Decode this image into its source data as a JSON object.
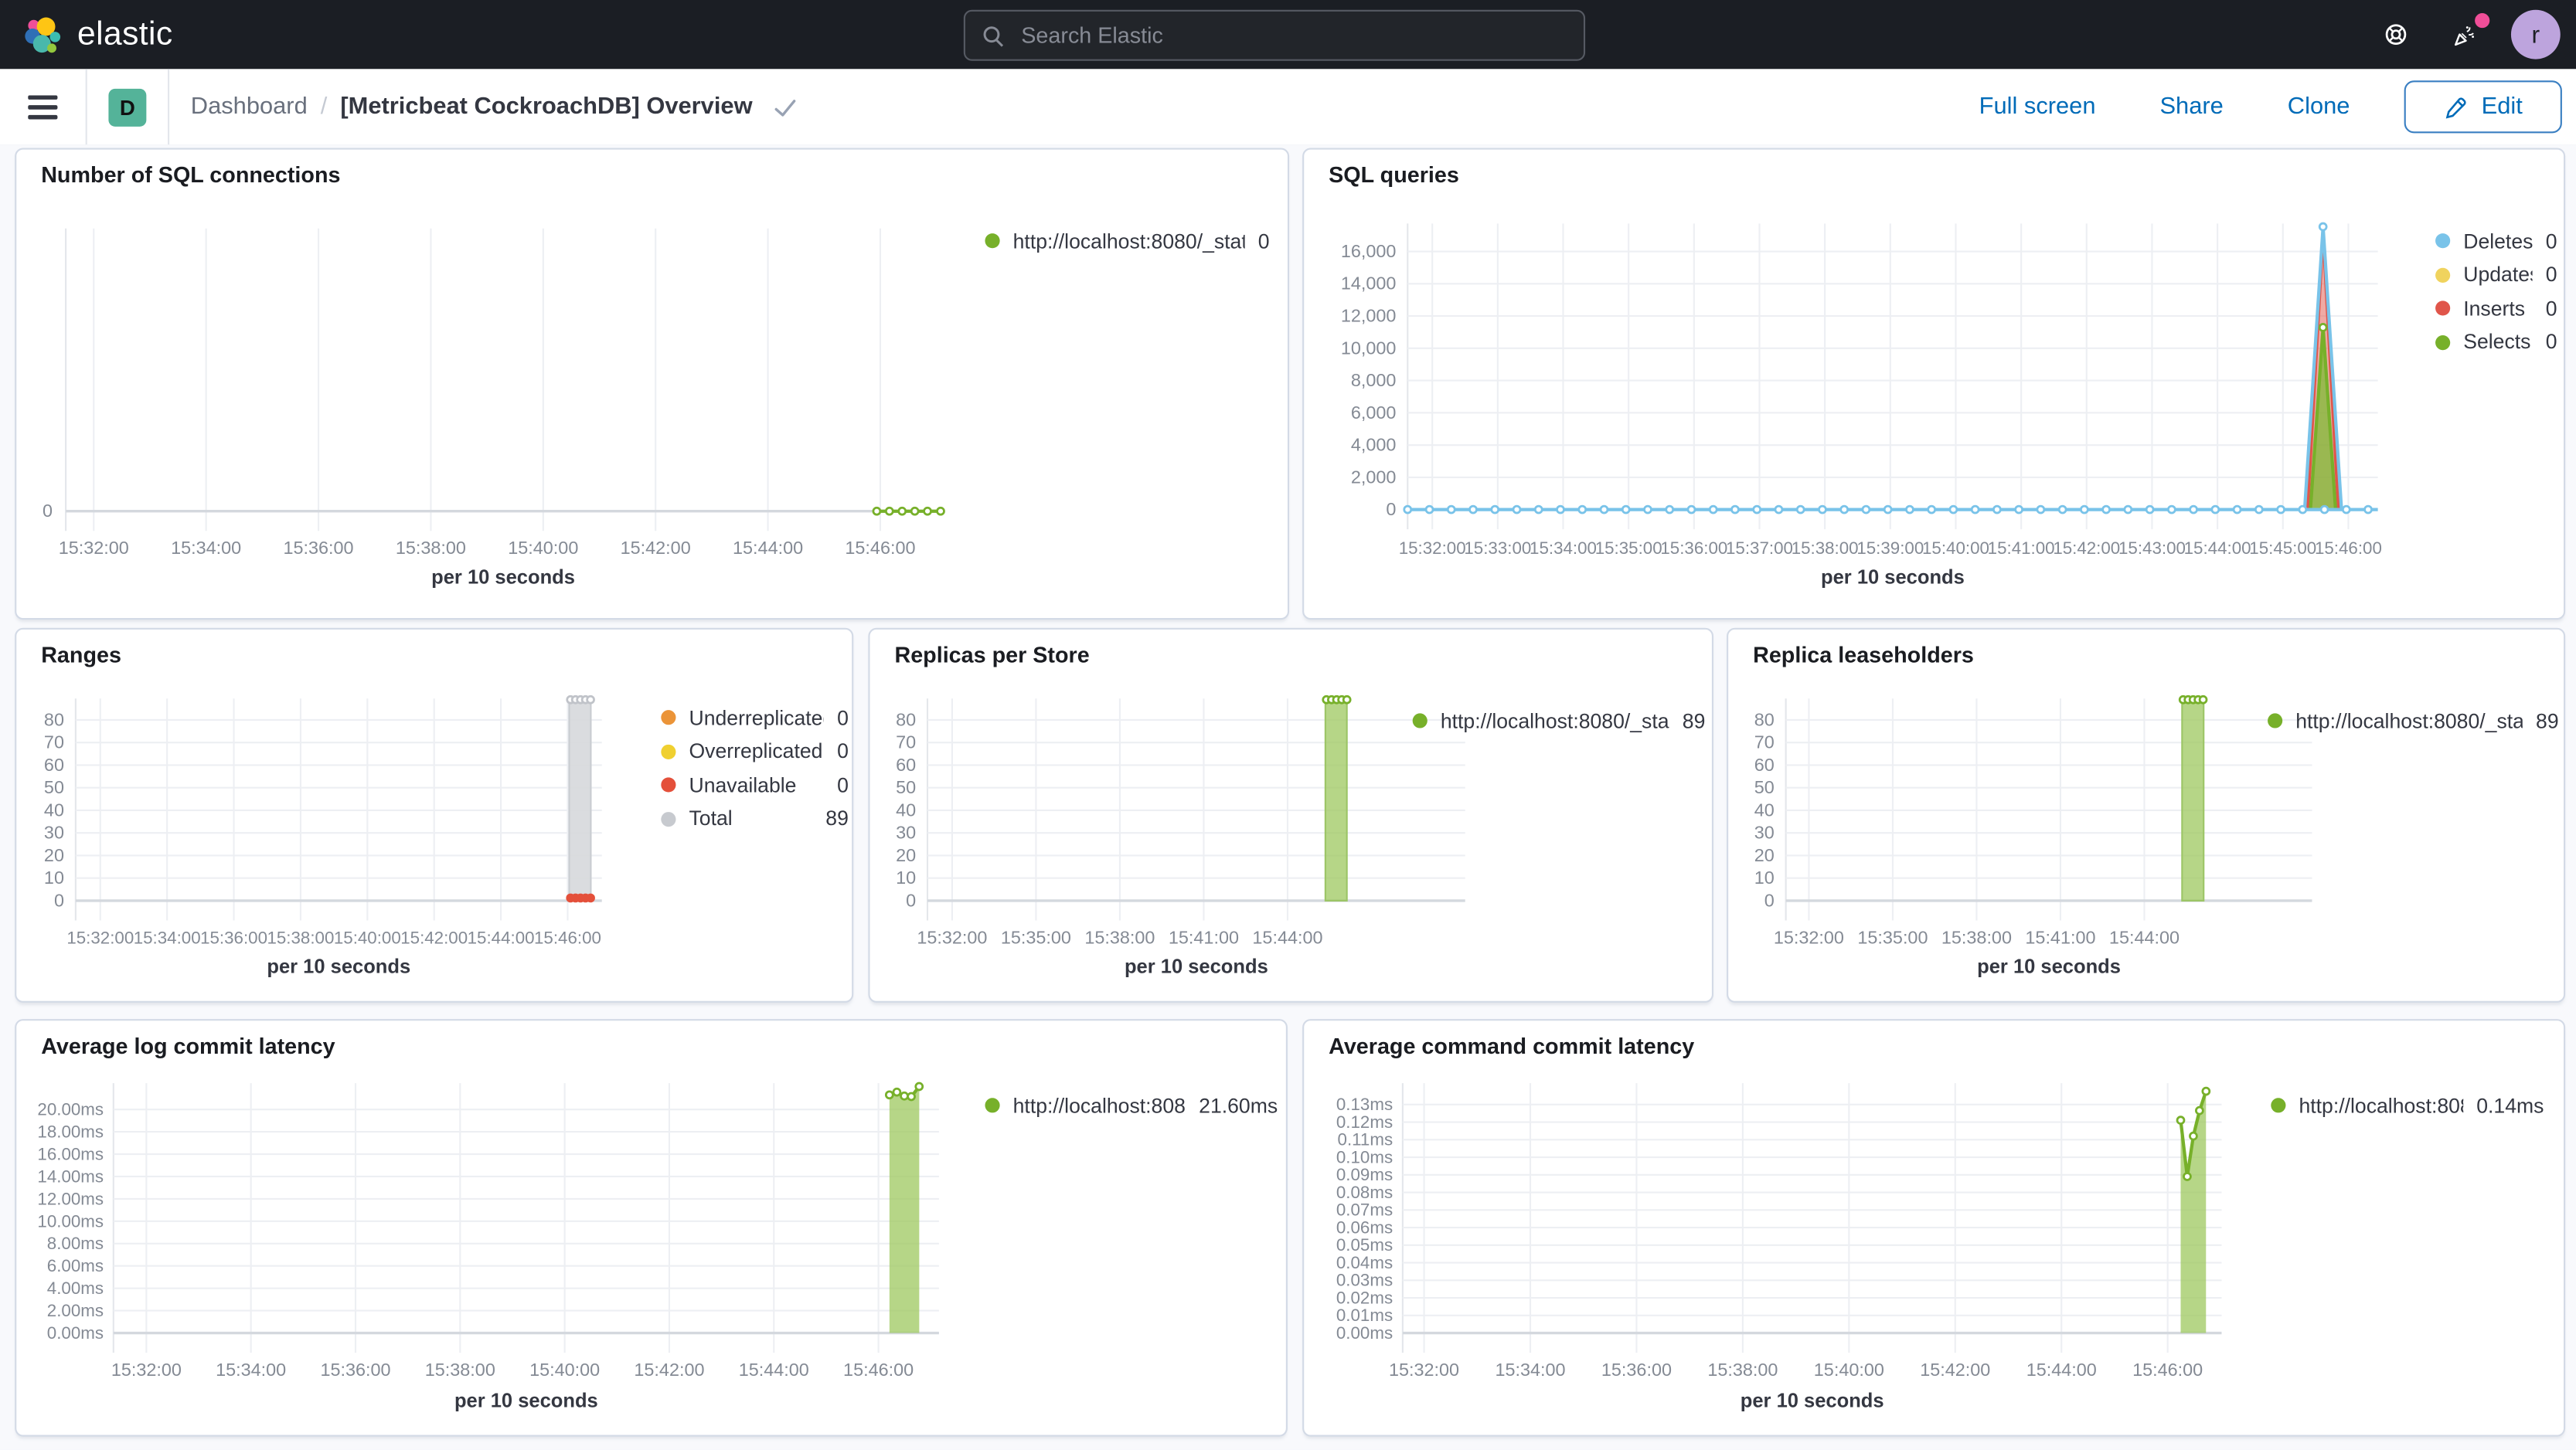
{
  "topbar": {
    "brand": "elastic",
    "search_placeholder": "Search Elastic",
    "avatar_initial": "r",
    "avatar_color": "#bda4dd",
    "notification_color": "#f04e98",
    "icons": [
      "help-icon",
      "news-icon"
    ]
  },
  "navbar": {
    "badge": "D",
    "badge_color": "#54b399",
    "breadcrumb_root": "Dashboard",
    "breadcrumb_sep": "/",
    "title": "[Metricbeat CockroachDB] Overview",
    "actions": [
      "Full screen",
      "Share",
      "Clone"
    ],
    "edit_label": "Edit"
  },
  "panels": [
    {
      "id": "p1",
      "title": "Number of SQL connections",
      "type": "line",
      "x_title": "per 10 seconds",
      "x_ticks": [
        "15:32:00",
        "15:34:00",
        "15:36:00",
        "15:38:00",
        "15:40:00",
        "15:42:00",
        "15:44:00",
        "15:46:00"
      ],
      "y_ticks": [
        "0"
      ],
      "legend": [
        {
          "label": "http://localhost:8080/_stat...",
          "value": "0",
          "color": "#77b02a"
        }
      ],
      "series": [
        {
          "name": "sql-connections",
          "type": "line",
          "color": "#77b02a",
          "markers": "hollow",
          "points": [
            [
              0.927,
              0
            ],
            [
              0.9415,
              0
            ],
            [
              0.956,
              0
            ],
            [
              0.9705,
              0
            ],
            [
              0.985,
              0
            ],
            [
              1.0,
              0
            ]
          ]
        }
      ]
    },
    {
      "id": "p2",
      "title": "SQL queries",
      "type": "line",
      "x_title": "per 10 seconds",
      "x_ticks": [
        "15:32:00",
        "15:33:00",
        "15:34:00",
        "15:35:00",
        "15:36:00",
        "15:37:00",
        "15:38:00",
        "15:39:00",
        "15:40:00",
        "15:41:00",
        "15:42:00",
        "15:43:00",
        "15:44:00",
        "15:45:00",
        "15:46:00"
      ],
      "y_ticks": [
        "16,000",
        "14,000",
        "12,000",
        "10,000",
        "8,000",
        "6,000",
        "4,000",
        "2,000",
        "0"
      ],
      "legend": [
        {
          "label": "Deletes",
          "value": "0",
          "color": "#79c3e9"
        },
        {
          "label": "Updates",
          "value": "0",
          "color": "#f0d35e"
        },
        {
          "label": "Inserts",
          "value": "0",
          "color": "#e0554a"
        },
        {
          "label": "Selects",
          "value": "0",
          "color": "#77b02a"
        }
      ],
      "series": [
        {
          "name": "inserts-spike",
          "type": "area",
          "color": "#e0554a",
          "fill": "rgba(224,85,74,0.5)",
          "markers": "none",
          "points": [
            [
              0.9275,
              0
            ],
            [
              0.9435,
              17200
            ],
            [
              0.9595,
              0
            ]
          ]
        },
        {
          "name": "selects-spike",
          "type": "area",
          "color": "#77b02a",
          "fill": "rgba(132,188,60,0.8)",
          "markers": "peak",
          "points": [
            [
              0.9305,
              0
            ],
            [
              0.9435,
              11300
            ],
            [
              0.9565,
              0
            ]
          ]
        },
        {
          "name": "deletes-spike",
          "type": "line",
          "color": "#79c3e9",
          "markers": "peak",
          "points": [
            [
              0.9245,
              0
            ],
            [
              0.9435,
              17550
            ],
            [
              0.9625,
              0
            ]
          ]
        },
        {
          "name": "deletes-baseline",
          "type": "line",
          "color": "#79c3e9",
          "markers": "none",
          "marker_step": 0.0225,
          "points": [
            [
              0,
              0
            ],
            [
              1,
              0
            ]
          ]
        }
      ]
    },
    {
      "id": "p3",
      "title": "Ranges",
      "type": "bar",
      "x_title": "per 10 seconds",
      "x_ticks": [
        "15:32:00",
        "15:34:00",
        "15:36:00",
        "15:38:00",
        "15:40:00",
        "15:42:00",
        "15:44:00",
        "15:46:00"
      ],
      "y_ticks": [
        "80",
        "70",
        "60",
        "50",
        "40",
        "30",
        "20",
        "10",
        "0"
      ],
      "legend": [
        {
          "label": "Underreplicated",
          "value": "0",
          "color": "#eb9438"
        },
        {
          "label": "Overreplicated",
          "value": "0",
          "color": "#f0d030"
        },
        {
          "label": "Unavailable",
          "value": "0",
          "color": "#e4503a"
        },
        {
          "label": "Total",
          "value": "89",
          "color": "#c7cacf"
        }
      ],
      "series": [
        {
          "name": "total-bar",
          "type": "bar",
          "color": "#c9ccd1",
          "fill": "rgba(214,216,220,0.9)",
          "x0": 0.938,
          "x1": 0.979,
          "value": 89
        },
        {
          "name": "total-top-dots",
          "type": "dots",
          "color": "#c0c3c9",
          "markers": "hollow",
          "points": [
            [
              0.9405,
              89
            ],
            [
              0.95,
              89
            ],
            [
              0.9595,
              89
            ],
            [
              0.969,
              89
            ],
            [
              0.9785,
              89
            ]
          ]
        },
        {
          "name": "unavailable-dots",
          "type": "dots",
          "color": "#e4503a",
          "markers": "filled",
          "points": [
            [
              0.9405,
              1.2
            ],
            [
              0.95,
              1.2
            ],
            [
              0.9595,
              1.2
            ],
            [
              0.969,
              1.2
            ],
            [
              0.9785,
              1.2
            ]
          ]
        }
      ]
    },
    {
      "id": "p4",
      "title": "Replicas per Store",
      "type": "bar",
      "x_title": "per 10 seconds",
      "x_ticks": [
        "15:32:00",
        "15:35:00",
        "15:38:00",
        "15:41:00",
        "15:44:00"
      ],
      "y_ticks": [
        "80",
        "70",
        "60",
        "50",
        "40",
        "30",
        "20",
        "10",
        "0"
      ],
      "legend": [
        {
          "label": "http://localhost:8080/_sta...",
          "value": "89",
          "color": "#77b02a"
        }
      ],
      "series": [
        {
          "name": "replicas-bar",
          "type": "bar",
          "color": "#9cc566",
          "fill": "rgba(158,200,95,0.75)",
          "x0": 0.74,
          "x1": 0.78,
          "value": 89
        },
        {
          "name": "replicas-top-dots",
          "type": "dots",
          "color": "#77b02a",
          "markers": "hollow",
          "points": [
            [
              0.742,
              89
            ],
            [
              0.7515,
              89
            ],
            [
              0.761,
              89
            ],
            [
              0.7705,
              89
            ],
            [
              0.78,
              89
            ]
          ]
        }
      ]
    },
    {
      "id": "p5",
      "title": "Replica leaseholders",
      "type": "bar",
      "x_title": "per 10 seconds",
      "x_ticks": [
        "15:32:00",
        "15:35:00",
        "15:38:00",
        "15:41:00",
        "15:44:00"
      ],
      "y_ticks": [
        "80",
        "70",
        "60",
        "50",
        "40",
        "30",
        "20",
        "10",
        "0"
      ],
      "legend": [
        {
          "label": "http://localhost:8080/_sta...",
          "value": "89",
          "color": "#77b02a"
        }
      ],
      "series": [
        {
          "name": "leaseholders-bar",
          "type": "bar",
          "color": "#9cc566",
          "fill": "rgba(158,200,95,0.75)",
          "x0": 0.753,
          "x1": 0.794,
          "value": 89
        },
        {
          "name": "leaseholders-top-dots",
          "type": "dots",
          "color": "#77b02a",
          "markers": "hollow",
          "points": [
            [
              0.755,
              89
            ],
            [
              0.7645,
              89
            ],
            [
              0.774,
              89
            ],
            [
              0.7835,
              89
            ],
            [
              0.793,
              89
            ]
          ]
        }
      ]
    },
    {
      "id": "p6",
      "title": "Average log commit latency",
      "type": "area",
      "x_title": "per 10 seconds",
      "x_ticks": [
        "15:32:00",
        "15:34:00",
        "15:36:00",
        "15:38:00",
        "15:40:00",
        "15:42:00",
        "15:44:00",
        "15:46:00"
      ],
      "y_ticks": [
        "20.00ms",
        "18.00ms",
        "16.00ms",
        "14.00ms",
        "12.00ms",
        "10.00ms",
        "8.00ms",
        "6.00ms",
        "4.00ms",
        "2.00ms",
        "0.00ms"
      ],
      "legend": [
        {
          "label": "http://localhost:808...",
          "value": "21.60ms",
          "color": "#77b02a"
        }
      ],
      "series": [
        {
          "name": "log-commit-latency",
          "type": "area",
          "color": "#77b02a",
          "fill": "rgba(158,200,95,0.75)",
          "markers": "hollow",
          "points": [
            [
              0.94,
              21.3
            ],
            [
              0.949,
              21.55
            ],
            [
              0.958,
              21.2
            ],
            [
              0.9665,
              21.15
            ],
            [
              0.976,
              22.05
            ]
          ]
        }
      ]
    },
    {
      "id": "p7",
      "title": "Average command commit latency",
      "type": "area",
      "x_title": "per 10 seconds",
      "x_ticks": [
        "15:32:00",
        "15:34:00",
        "15:36:00",
        "15:38:00",
        "15:40:00",
        "15:42:00",
        "15:44:00",
        "15:46:00"
      ],
      "y_ticks": [
        "0.13ms",
        "0.12ms",
        "0.11ms",
        "0.10ms",
        "0.09ms",
        "0.08ms",
        "0.07ms",
        "0.06ms",
        "0.05ms",
        "0.04ms",
        "0.03ms",
        "0.02ms",
        "0.01ms",
        "0.00ms"
      ],
      "legend": [
        {
          "label": "http://localhost:8080...",
          "value": "0.14ms",
          "color": "#77b02a"
        }
      ],
      "series": [
        {
          "name": "command-commit-latency",
          "type": "area",
          "color": "#77b02a",
          "fill": "rgba(158,200,95,0.75)",
          "markers": "hollow",
          "points": [
            [
              0.95,
              0.121
            ],
            [
              0.958,
              0.089
            ],
            [
              0.9655,
              0.112
            ],
            [
              0.973,
              0.1265
            ],
            [
              0.981,
              0.1375
            ]
          ]
        }
      ]
    }
  ]
}
